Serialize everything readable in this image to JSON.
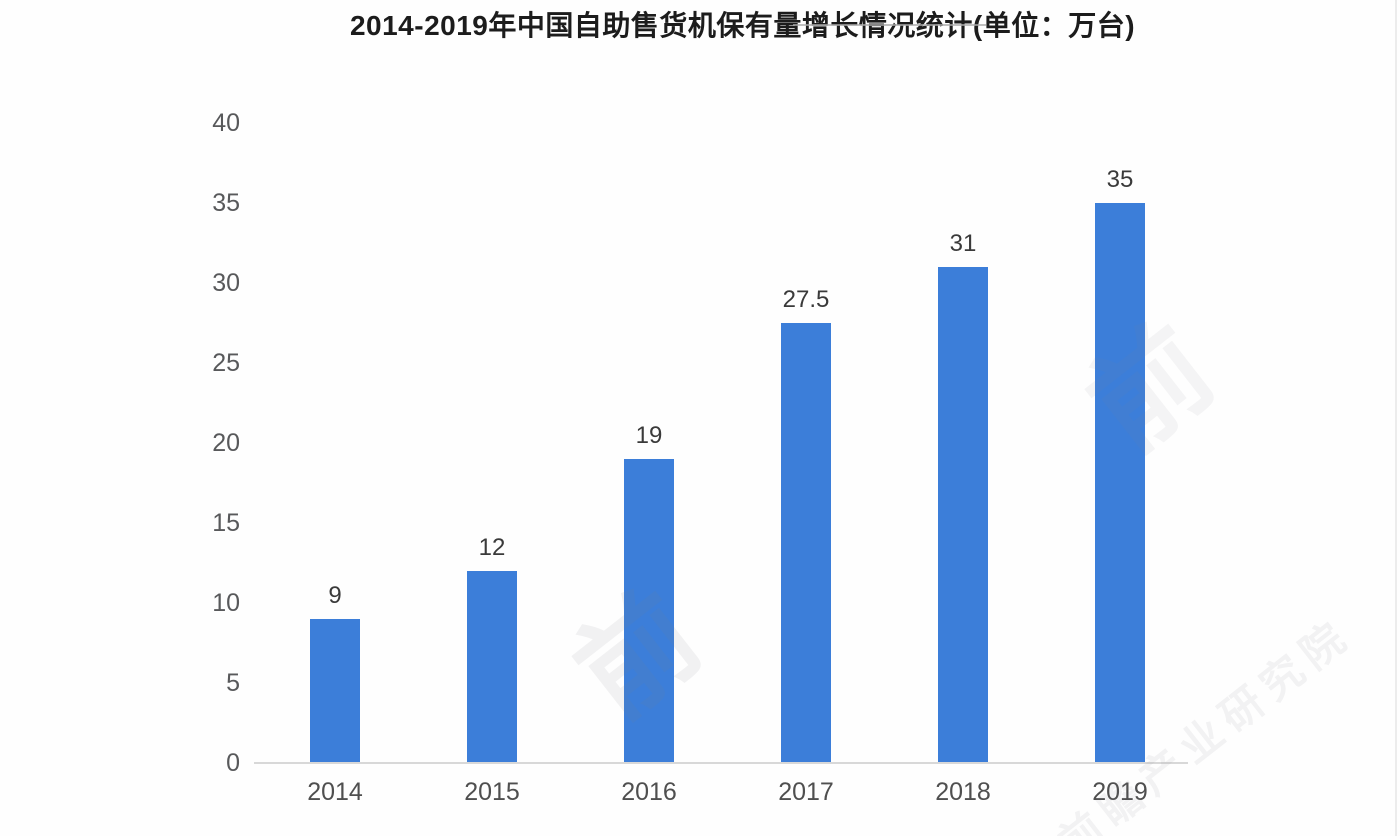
{
  "title": "2014-2019年中国自助售货机保有量增长情况统计(单位：万台)",
  "chart_data": {
    "type": "bar",
    "title": "2014-2019年中国自助售货机保有量增长情况统计(单位：万台)",
    "unit": "万台",
    "categories": [
      "2014",
      "2015",
      "2016",
      "2017",
      "2018",
      "2019"
    ],
    "values": [
      9,
      12,
      19,
      27.5,
      31,
      35
    ],
    "value_labels": [
      "9",
      "12",
      "19",
      "27.5",
      "31",
      "35"
    ],
    "xlabel": "",
    "ylabel": "",
    "ylim": [
      0,
      40
    ],
    "yticks": [
      0,
      5,
      10,
      15,
      20,
      25,
      30,
      35,
      40
    ],
    "grid": false,
    "legend_position": "none",
    "bar_color": "#3c7ed9"
  },
  "colors": {
    "background": "#fefefe",
    "bar": "#3c7ed9",
    "axis_line": "#d8d8d8",
    "y_tick_label": "#58595b",
    "x_tick_label": "#4f4f4f",
    "value_label": "#3a3a3a",
    "title": "#1c1c1c"
  },
  "watermarks": [
    "前",
    "前",
    "前瞻产业研究院"
  ]
}
